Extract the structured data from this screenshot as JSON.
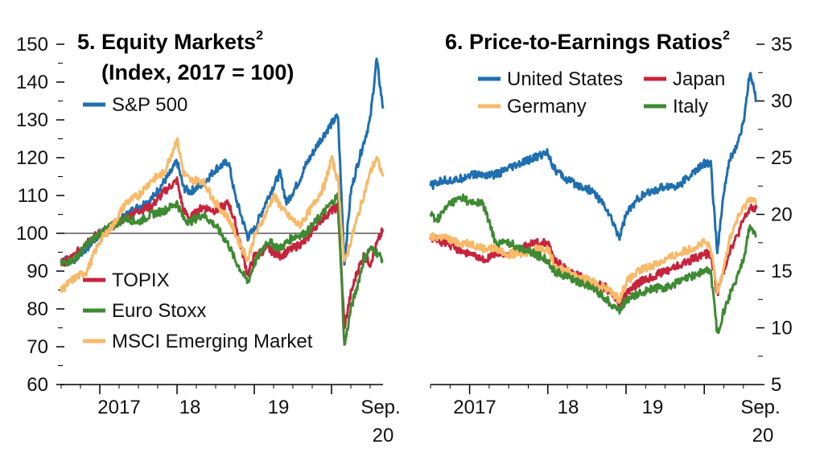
{
  "colors": {
    "blue": "#1f6fb0",
    "red": "#c8233c",
    "green": "#3e8a33",
    "orange": "#f8b968"
  },
  "chart_data": [
    {
      "type": "line",
      "title": "5. Equity Markets",
      "title_sup": "2",
      "subtitle": "(Index, 2017 = 100)",
      "x_ticks": [
        "2017",
        "18",
        "19",
        "Sep.",
        "20"
      ],
      "xlim": [
        "2016-07",
        "2020-09"
      ],
      "y_axis_side": "left",
      "ylim": [
        60,
        150
      ],
      "y_ticks": [
        60,
        70,
        80,
        90,
        100,
        110,
        120,
        130,
        140,
        150
      ],
      "reference_line": 100,
      "series": [
        {
          "name": "S&P 500",
          "color": "blue",
          "x": [
            "2016-07",
            "2016-09",
            "2016-11",
            "2017-01",
            "2017-03",
            "2017-06",
            "2017-09",
            "2017-12",
            "2018-01",
            "2018-02",
            "2018-03",
            "2018-05",
            "2018-07",
            "2018-09",
            "2018-10",
            "2018-12",
            "2019-01",
            "2019-03",
            "2019-05",
            "2019-06",
            "2019-08",
            "2019-09",
            "2019-11",
            "2020-01",
            "2020-02",
            "2020-03",
            "2020-04",
            "2020-05",
            "2020-06",
            "2020-07",
            "2020-08",
            "2020-09"
          ],
          "y": [
            93,
            93,
            96,
            100,
            102,
            106,
            109,
            116,
            119,
            112,
            111,
            113,
            117,
            119,
            110,
            99,
            101,
            109,
            116,
            108,
            114,
            118,
            124,
            129,
            131,
            92,
            111,
            118,
            124,
            130,
            146,
            133
          ]
        },
        {
          "name": "TOPIX",
          "color": "red",
          "x": [
            "2016-07",
            "2016-09",
            "2016-11",
            "2017-01",
            "2017-03",
            "2017-05",
            "2017-07",
            "2017-09",
            "2017-11",
            "2018-01",
            "2018-02",
            "2018-03",
            "2018-05",
            "2018-07",
            "2018-09",
            "2018-10",
            "2018-12",
            "2019-01",
            "2019-03",
            "2019-05",
            "2019-07",
            "2019-09",
            "2019-11",
            "2020-01",
            "2020-02",
            "2020-03",
            "2020-04",
            "2020-05",
            "2020-06",
            "2020-07",
            "2020-08",
            "2020-09"
          ],
          "y": [
            92,
            94,
            98,
            100,
            102,
            104,
            106,
            107,
            111,
            114,
            106,
            104,
            107,
            106,
            108,
            103,
            89,
            94,
            96,
            94,
            96,
            98,
            103,
            106,
            107,
            75,
            84,
            90,
            94,
            92,
            97,
            101
          ]
        },
        {
          "name": "Euro Stoxx",
          "color": "green",
          "x": [
            "2016-07",
            "2016-09",
            "2016-11",
            "2017-01",
            "2017-03",
            "2017-05",
            "2017-07",
            "2017-09",
            "2017-11",
            "2018-01",
            "2018-02",
            "2018-03",
            "2018-05",
            "2018-07",
            "2018-09",
            "2018-10",
            "2018-12",
            "2019-01",
            "2019-03",
            "2019-05",
            "2019-07",
            "2019-09",
            "2019-11",
            "2020-01",
            "2020-02",
            "2020-03",
            "2020-04",
            "2020-05",
            "2020-06",
            "2020-07",
            "2020-08",
            "2020-09"
          ],
          "y": [
            92,
            93,
            97,
            100,
            102,
            104,
            103,
            105,
            106,
            108,
            104,
            103,
            105,
            102,
            97,
            93,
            87,
            92,
            98,
            96,
            99,
            100,
            104,
            108,
            110,
            70,
            80,
            86,
            93,
            96,
            95,
            93
          ]
        },
        {
          "name": "MSCI Emerging Market",
          "color": "orange",
          "x": [
            "2016-07",
            "2016-09",
            "2016-11",
            "2017-01",
            "2017-03",
            "2017-05",
            "2017-07",
            "2017-09",
            "2017-11",
            "2018-01",
            "2018-02",
            "2018-03",
            "2018-05",
            "2018-07",
            "2018-09",
            "2018-10",
            "2018-12",
            "2019-01",
            "2019-03",
            "2019-04",
            "2019-06",
            "2019-08",
            "2019-10",
            "2019-12",
            "2020-01",
            "2020-02",
            "2020-03",
            "2020-04",
            "2020-05",
            "2020-06",
            "2020-07",
            "2020-08",
            "2020-09"
          ],
          "y": [
            85,
            88,
            90,
            98,
            102,
            108,
            110,
            114,
            116,
            125,
            116,
            114,
            114,
            108,
            104,
            100,
            93,
            99,
            106,
            110,
            105,
            102,
            107,
            113,
            120,
            114,
            92,
            98,
            104,
            110,
            116,
            120,
            115
          ]
        }
      ]
    },
    {
      "type": "line",
      "title": "6. Price-to-Earnings Ratios",
      "title_sup": "2",
      "x_ticks": [
        "2017",
        "18",
        "19",
        "Sep.",
        "20"
      ],
      "xlim": [
        "2016-07",
        "2020-09"
      ],
      "y_axis_side": "right",
      "ylim": [
        5,
        35
      ],
      "y_ticks": [
        5,
        10,
        15,
        20,
        25,
        30,
        35
      ],
      "series": [
        {
          "name": "United States",
          "color": "blue",
          "x": [
            "2016-07",
            "2016-09",
            "2016-11",
            "2017-01",
            "2017-03",
            "2017-05",
            "2017-07",
            "2017-09",
            "2017-11",
            "2018-01",
            "2018-02",
            "2018-04",
            "2018-06",
            "2018-08",
            "2018-10",
            "2018-12",
            "2019-01",
            "2019-03",
            "2019-05",
            "2019-07",
            "2019-09",
            "2019-11",
            "2020-01",
            "2020-02",
            "2020-03",
            "2020-04",
            "2020-05",
            "2020-06",
            "2020-07",
            "2020-08",
            "2020-09"
          ],
          "y": [
            22.5,
            23,
            23,
            23.5,
            23.5,
            23.5,
            24,
            24.5,
            25,
            25.5,
            24,
            23,
            22.5,
            22,
            20.5,
            18,
            20,
            21.5,
            22,
            22.5,
            22.5,
            23.5,
            24.5,
            24.5,
            16.5,
            22,
            25,
            26,
            28,
            32.5,
            30
          ]
        },
        {
          "name": "Japan",
          "color": "red",
          "x": [
            "2016-07",
            "2016-09",
            "2016-11",
            "2017-01",
            "2017-03",
            "2017-05",
            "2017-07",
            "2017-09",
            "2017-11",
            "2018-01",
            "2018-02",
            "2018-04",
            "2018-06",
            "2018-08",
            "2018-10",
            "2018-12",
            "2019-01",
            "2019-03",
            "2019-05",
            "2019-07",
            "2019-09",
            "2019-11",
            "2020-01",
            "2020-02",
            "2020-03",
            "2020-04",
            "2020-05",
            "2020-06",
            "2020-07",
            "2020-08",
            "2020-09"
          ],
          "y": [
            18,
            17.5,
            17,
            16.5,
            16,
            16.5,
            16.5,
            17,
            17.5,
            17.5,
            16,
            15,
            14.5,
            14,
            13.5,
            12,
            13,
            14,
            14.5,
            15,
            15.5,
            16,
            16.5,
            16.5,
            13,
            15,
            17,
            18,
            19.5,
            20.5,
            20.5
          ]
        },
        {
          "name": "Germany",
          "color": "orange",
          "x": [
            "2016-07",
            "2016-09",
            "2016-11",
            "2017-01",
            "2017-03",
            "2017-05",
            "2017-07",
            "2017-09",
            "2017-11",
            "2018-01",
            "2018-02",
            "2018-04",
            "2018-06",
            "2018-08",
            "2018-10",
            "2018-12",
            "2019-01",
            "2019-03",
            "2019-05",
            "2019-07",
            "2019-09",
            "2019-11",
            "2020-01",
            "2020-02",
            "2020-03",
            "2020-04",
            "2020-05",
            "2020-06",
            "2020-07",
            "2020-08",
            "2020-09"
          ],
          "y": [
            18,
            18,
            17.5,
            17.5,
            17,
            17,
            16.5,
            16.5,
            17,
            17,
            15.5,
            15,
            14.5,
            14,
            13.5,
            12.5,
            14,
            15,
            15.5,
            16,
            16.5,
            17,
            17.5,
            17,
            13,
            15.5,
            18,
            19.5,
            20.5,
            21.5,
            21
          ]
        },
        {
          "name": "Italy",
          "color": "green",
          "x": [
            "2016-07",
            "2016-08",
            "2016-10",
            "2016-12",
            "2017-01",
            "2017-03",
            "2017-05",
            "2017-07",
            "2017-09",
            "2017-11",
            "2018-01",
            "2018-02",
            "2018-04",
            "2018-06",
            "2018-08",
            "2018-10",
            "2018-12",
            "2019-01",
            "2019-03",
            "2019-05",
            "2019-07",
            "2019-09",
            "2019-11",
            "2020-01",
            "2020-02",
            "2020-03",
            "2020-04",
            "2020-05",
            "2020-06",
            "2020-07",
            "2020-08",
            "2020-09"
          ],
          "y": [
            20,
            19.5,
            21,
            21.5,
            21,
            21,
            17.5,
            17.5,
            17,
            16.5,
            16,
            15,
            14.5,
            14,
            13.5,
            12.5,
            11.5,
            12.5,
            13,
            13.5,
            13.5,
            14,
            14.5,
            15,
            15,
            9.5,
            11.5,
            13,
            14.5,
            16,
            19,
            18
          ]
        }
      ]
    }
  ]
}
